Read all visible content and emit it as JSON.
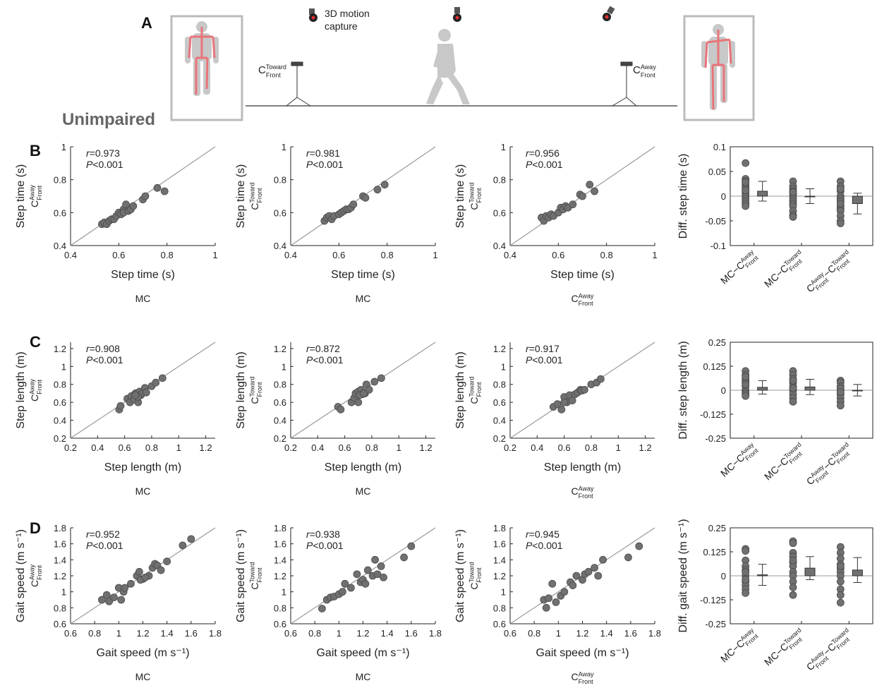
{
  "figure": {
    "panel_labels": [
      "A",
      "B",
      "C",
      "D"
    ],
    "group_label": "Unimpaired",
    "mocap_label": [
      "3D motion",
      "capture"
    ],
    "camera_toward": [
      {
        "base": "C",
        "sup": "Toward",
        "sub": "Front"
      }
    ],
    "camera_away": [
      {
        "base": "C",
        "sup": "Away",
        "sub": "Front"
      }
    ]
  },
  "chart_data": [
    {
      "type": "scatter",
      "xlabel": "Step time (s)",
      "ylabel": "Step time (s)",
      "xsource": [
        {
          "base": "MC"
        }
      ],
      "ysource": [
        {
          "base": "C",
          "sup": "Away",
          "sub": "Front"
        }
      ],
      "annotation": [
        "r=0.973",
        "P<0.001"
      ],
      "identity_line": true,
      "color": "#707070",
      "xlim": [
        0.4,
        1
      ],
      "ylim": [
        0.4,
        1
      ],
      "xticks": [
        0.4,
        0.6,
        0.8,
        1
      ],
      "yticks": [
        0.4,
        0.6,
        0.8,
        1
      ],
      "x": [
        0.53,
        0.54,
        0.55,
        0.56,
        0.57,
        0.58,
        0.59,
        0.6,
        0.61,
        0.62,
        0.62,
        0.63,
        0.64,
        0.65,
        0.66,
        0.7,
        0.71,
        0.76,
        0.79
      ],
      "values": [
        0.53,
        0.54,
        0.53,
        0.55,
        0.56,
        0.56,
        0.58,
        0.6,
        0.59,
        0.62,
        0.6,
        0.65,
        0.61,
        0.62,
        0.64,
        0.68,
        0.7,
        0.75,
        0.73
      ]
    },
    {
      "type": "scatter",
      "xlabel": "Step time (s)",
      "ylabel": "Step time (s)",
      "xsource": [
        {
          "base": "MC"
        }
      ],
      "ysource": [
        {
          "base": "C",
          "sup": "Toward",
          "sub": "Front"
        }
      ],
      "annotation": [
        "r=0.981",
        "P<0.001"
      ],
      "identity_line": true,
      "color": "#707070",
      "xlim": [
        0.4,
        1
      ],
      "ylim": [
        0.4,
        1
      ],
      "xticks": [
        0.4,
        0.6,
        0.8,
        1
      ],
      "yticks": [
        0.4,
        0.6,
        0.8,
        1
      ],
      "x": [
        0.54,
        0.55,
        0.56,
        0.57,
        0.58,
        0.6,
        0.61,
        0.62,
        0.63,
        0.64,
        0.65,
        0.66,
        0.7,
        0.71,
        0.76,
        0.79
      ],
      "values": [
        0.55,
        0.57,
        0.58,
        0.56,
        0.58,
        0.59,
        0.6,
        0.61,
        0.62,
        0.62,
        0.63,
        0.65,
        0.7,
        0.69,
        0.74,
        0.77
      ]
    },
    {
      "type": "scatter",
      "xlabel": "Step time (s)",
      "ylabel": "Step time (s)",
      "xsource": [
        {
          "base": "C",
          "sup": "Away",
          "sub": "Front"
        }
      ],
      "ysource": [
        {
          "base": "C",
          "sup": "Toward",
          "sub": "Front"
        }
      ],
      "annotation": [
        "r=0.956",
        "P<0.001"
      ],
      "identity_line": true,
      "color": "#707070",
      "xlim": [
        0.4,
        1
      ],
      "ylim": [
        0.4,
        1
      ],
      "xticks": [
        0.4,
        0.6,
        0.8,
        1
      ],
      "yticks": [
        0.4,
        0.6,
        0.8,
        1
      ],
      "x": [
        0.53,
        0.54,
        0.55,
        0.56,
        0.57,
        0.58,
        0.6,
        0.61,
        0.62,
        0.63,
        0.64,
        0.66,
        0.69,
        0.7,
        0.73,
        0.75
      ],
      "values": [
        0.57,
        0.55,
        0.58,
        0.57,
        0.59,
        0.58,
        0.6,
        0.63,
        0.62,
        0.64,
        0.63,
        0.65,
        0.71,
        0.7,
        0.77,
        0.73
      ]
    },
    {
      "type": "strip",
      "ylabel": "Diff. step time (s)",
      "color": "#707070",
      "categories": [
        [
          {
            "base": "MC−C",
            "sup": "Away",
            "sub": "Front"
          }
        ],
        [
          {
            "base": "MC−C",
            "sup": "Toward",
            "sub": "Front"
          }
        ],
        [
          {
            "base": "C",
            "sup": "Away",
            "sub": "Front"
          },
          {
            "base": "−C",
            "sup": "Toward",
            "sub": "Front"
          }
        ]
      ],
      "ylim": [
        -0.1,
        0.1
      ],
      "yticks": [
        -0.1,
        -0.05,
        0,
        0.05,
        0.1
      ],
      "values": [
        0.01,
        0,
        -0.015
      ],
      "errors": [
        0.02,
        0.015,
        0.021
      ],
      "points": [
        [
          0.067,
          0.035,
          0.03,
          0.025,
          0.02,
          0.015,
          0.01,
          0.005,
          0,
          -0.005,
          -0.01,
          -0.015,
          -0.02,
          0.012,
          0.028
        ],
        [
          0.03,
          0.02,
          0.015,
          0.01,
          0.005,
          0,
          -0.005,
          -0.01,
          -0.015,
          -0.02,
          -0.03,
          -0.038,
          -0.042,
          0.008
        ],
        [
          0.03,
          0.02,
          0.01,
          0,
          -0.005,
          -0.01,
          -0.02,
          -0.025,
          -0.03,
          -0.04,
          -0.05,
          -0.055,
          0.015,
          -0.015
        ]
      ]
    },
    {
      "type": "scatter",
      "xlabel": "Step length (m)",
      "ylabel": "Step length (m)",
      "xsource": [
        {
          "base": "MC"
        }
      ],
      "ysource": [
        {
          "base": "C",
          "sup": "Away",
          "sub": "Front"
        }
      ],
      "annotation": [
        "r=0.908",
        "P<0.001"
      ],
      "identity_line": true,
      "color": "#707070",
      "xlim": [
        0.2,
        1.27
      ],
      "ylim": [
        0.2,
        1.27
      ],
      "xticks": [
        0.2,
        0.4,
        0.6,
        0.8,
        1,
        1.2
      ],
      "yticks": [
        0.2,
        0.4,
        0.6,
        0.8,
        1,
        1.2
      ],
      "x": [
        0.56,
        0.57,
        0.62,
        0.64,
        0.65,
        0.67,
        0.68,
        0.7,
        0.71,
        0.72,
        0.73,
        0.75,
        0.76,
        0.8,
        0.83,
        0.88,
        0.7,
        0.68
      ],
      "values": [
        0.52,
        0.56,
        0.64,
        0.6,
        0.67,
        0.63,
        0.7,
        0.6,
        0.72,
        0.68,
        0.7,
        0.76,
        0.71,
        0.78,
        0.82,
        0.87,
        0.66,
        0.68
      ]
    },
    {
      "type": "scatter",
      "xlabel": "Step length (m)",
      "ylabel": "Step length (m)",
      "xsource": [
        {
          "base": "MC"
        }
      ],
      "ysource": [
        {
          "base": "C",
          "sup": "Toward",
          "sub": "Front"
        }
      ],
      "annotation": [
        "r=0.872",
        "P<0.001"
      ],
      "identity_line": true,
      "color": "#707070",
      "xlim": [
        0.2,
        1.27
      ],
      "ylim": [
        0.2,
        1.27
      ],
      "xticks": [
        0.2,
        0.4,
        0.6,
        0.8,
        1,
        1.2
      ],
      "yticks": [
        0.2,
        0.4,
        0.6,
        0.8,
        1,
        1.2
      ],
      "x": [
        0.55,
        0.57,
        0.65,
        0.67,
        0.68,
        0.7,
        0.7,
        0.72,
        0.73,
        0.75,
        0.76,
        0.78,
        0.82,
        0.87,
        0.71,
        0.74
      ],
      "values": [
        0.55,
        0.52,
        0.6,
        0.65,
        0.7,
        0.72,
        0.6,
        0.74,
        0.69,
        0.7,
        0.8,
        0.74,
        0.83,
        0.87,
        0.68,
        0.7
      ]
    },
    {
      "type": "scatter",
      "xlabel": "Step length (m)",
      "ylabel": "Step length (m)",
      "xsource": [
        {
          "base": "C",
          "sup": "Away",
          "sub": "Front"
        }
      ],
      "ysource": [
        {
          "base": "C",
          "sup": "Toward",
          "sub": "Front"
        }
      ],
      "annotation": [
        "r=0.917",
        "P<0.001"
      ],
      "identity_line": true,
      "color": "#707070",
      "xlim": [
        0.2,
        1.27
      ],
      "ylim": [
        0.2,
        1.27
      ],
      "xticks": [
        0.2,
        0.4,
        0.6,
        0.8,
        1,
        1.2
      ],
      "yticks": [
        0.2,
        0.4,
        0.6,
        0.8,
        1,
        1.2
      ],
      "x": [
        0.52,
        0.55,
        0.58,
        0.6,
        0.62,
        0.64,
        0.66,
        0.68,
        0.7,
        0.72,
        0.73,
        0.75,
        0.8,
        0.84,
        0.87,
        0.6
      ],
      "values": [
        0.55,
        0.58,
        0.52,
        0.66,
        0.6,
        0.68,
        0.62,
        0.69,
        0.71,
        0.74,
        0.73,
        0.74,
        0.8,
        0.82,
        0.86,
        0.6
      ]
    },
    {
      "type": "strip",
      "ylabel": "Diff. step length (m)",
      "color": "#707070",
      "categories": [
        [
          {
            "base": "MC−C",
            "sup": "Away",
            "sub": "Front"
          }
        ],
        [
          {
            "base": "MC−C",
            "sup": "Toward",
            "sub": "Front"
          }
        ],
        [
          {
            "base": "C",
            "sup": "Away",
            "sub": "Front"
          },
          {
            "base": "−C",
            "sup": "Toward",
            "sub": "Front"
          }
        ]
      ],
      "ylim": [
        -0.25,
        0.25
      ],
      "yticks": [
        -0.25,
        -0.125,
        0,
        0.125,
        0.25
      ],
      "values": [
        0.015,
        0.017,
        0
      ],
      "errors": [
        0.035,
        0.04,
        0.03
      ],
      "points": [
        [
          0.1,
          0.08,
          0.06,
          0.05,
          0.04,
          0.02,
          0,
          -0.01,
          -0.02,
          -0.03,
          0.03,
          0.07
        ],
        [
          0.1,
          0.08,
          0.06,
          0.04,
          0.02,
          0,
          -0.02,
          -0.04,
          -0.06,
          0.05,
          0.01
        ],
        [
          0.05,
          0.04,
          0.02,
          0,
          -0.02,
          -0.04,
          -0.06,
          -0.08,
          0.01,
          -0.01
        ]
      ]
    },
    {
      "type": "scatter",
      "xlabel": "Gait speed (m s⁻¹)",
      "ylabel": "Gait speed (m s⁻¹)",
      "xsource": [
        {
          "base": "MC"
        }
      ],
      "ysource": [
        {
          "base": "C",
          "sup": "Away",
          "sub": "Front"
        }
      ],
      "annotation": [
        "r=0.952",
        "P<0.001"
      ],
      "identity_line": true,
      "color": "#707070",
      "xlim": [
        0.6,
        1.8
      ],
      "ylim": [
        0.6,
        1.8
      ],
      "xticks": [
        0.6,
        0.8,
        1,
        1.2,
        1.4,
        1.6,
        1.8
      ],
      "yticks": [
        0.6,
        0.8,
        1,
        1.2,
        1.4,
        1.6,
        1.8
      ],
      "x": [
        0.86,
        0.9,
        0.92,
        0.96,
        1.0,
        1.02,
        1.04,
        1.05,
        1.1,
        1.15,
        1.17,
        1.2,
        1.25,
        1.28,
        1.3,
        1.32,
        1.35,
        1.4,
        1.53,
        1.6,
        1.18,
        1.22
      ],
      "values": [
        0.9,
        0.96,
        0.88,
        0.93,
        1.05,
        0.9,
        1.0,
        1.05,
        1.1,
        1.2,
        1.25,
        1.16,
        1.2,
        1.3,
        1.35,
        1.33,
        1.27,
        1.38,
        1.58,
        1.66,
        1.15,
        1.18
      ]
    },
    {
      "type": "scatter",
      "xlabel": "Gait speed (m s⁻¹)",
      "ylabel": "Gait speed (m s⁻¹)",
      "xsource": [
        {
          "base": "MC"
        }
      ],
      "ysource": [
        {
          "base": "C",
          "sup": "Toward",
          "sub": "Front"
        }
      ],
      "annotation": [
        "r=0.938",
        "P<0.001"
      ],
      "identity_line": true,
      "color": "#707070",
      "xlim": [
        0.6,
        1.8
      ],
      "ylim": [
        0.6,
        1.8
      ],
      "xticks": [
        0.6,
        0.8,
        1,
        1.2,
        1.4,
        1.6,
        1.8
      ],
      "yticks": [
        0.6,
        0.8,
        1,
        1.2,
        1.4,
        1.6,
        1.8
      ],
      "x": [
        0.86,
        0.9,
        0.93,
        0.96,
        1.0,
        1.03,
        1.05,
        1.1,
        1.15,
        1.18,
        1.2,
        1.24,
        1.28,
        1.3,
        1.32,
        1.35,
        1.37,
        1.54,
        1.6,
        1.22
      ],
      "values": [
        0.79,
        0.9,
        0.93,
        0.94,
        0.97,
        1.0,
        1.1,
        1.05,
        1.22,
        1.12,
        1.15,
        1.27,
        1.2,
        1.4,
        1.22,
        1.32,
        1.18,
        1.43,
        1.57,
        1.1
      ]
    },
    {
      "type": "scatter",
      "xlabel": "Gait speed (m s⁻¹)",
      "ylabel": "Gait speed (m s⁻¹)",
      "xsource": [
        {
          "base": "C",
          "sup": "Away",
          "sub": "Front"
        }
      ],
      "ysource": [
        {
          "base": "C",
          "sup": "Toward",
          "sub": "Front"
        }
      ],
      "annotation": [
        "r=0.945",
        "P<0.001"
      ],
      "identity_line": true,
      "color": "#707070",
      "xlim": [
        0.6,
        1.8
      ],
      "ylim": [
        0.6,
        1.8
      ],
      "xticks": [
        0.6,
        0.8,
        1,
        1.2,
        1.4,
        1.6,
        1.8
      ],
      "yticks": [
        0.6,
        0.8,
        1,
        1.2,
        1.4,
        1.6,
        1.8
      ],
      "x": [
        0.88,
        0.9,
        0.95,
        0.98,
        1.02,
        1.05,
        1.1,
        1.12,
        1.15,
        1.2,
        1.22,
        1.25,
        1.3,
        1.33,
        1.37,
        1.58,
        1.67,
        0.92
      ],
      "values": [
        0.9,
        0.8,
        1.1,
        0.87,
        0.95,
        1.0,
        1.12,
        1.08,
        1.2,
        1.15,
        1.22,
        1.25,
        1.3,
        1.2,
        1.4,
        1.43,
        1.57,
        0.92
      ]
    },
    {
      "type": "strip",
      "ylabel": "Diff. gait speed (m s⁻¹)",
      "color": "#707070",
      "categories": [
        [
          {
            "base": "MC−C",
            "sup": "Away",
            "sub": "Front"
          }
        ],
        [
          {
            "base": "MC−C",
            "sup": "Toward",
            "sub": "Front"
          }
        ],
        [
          {
            "base": "C",
            "sup": "Away",
            "sub": "Front"
          },
          {
            "base": "−C",
            "sup": "Toward",
            "sub": "Front"
          }
        ]
      ],
      "ylim": [
        -0.25,
        0.25
      ],
      "yticks": [
        -0.25,
        -0.125,
        0,
        0.125,
        0.25
      ],
      "values": [
        0.005,
        0.04,
        0.03
      ],
      "errors": [
        0.055,
        0.06,
        0.065
      ],
      "points": [
        [
          0.14,
          0.13,
          0.08,
          0.05,
          0.03,
          0,
          -0.03,
          -0.05,
          -0.07,
          -0.09,
          0.02,
          -0.02
        ],
        [
          0.18,
          0.17,
          0.12,
          0.1,
          0.07,
          0.05,
          0.02,
          0,
          -0.03,
          -0.06,
          -0.1,
          0.08
        ],
        [
          0.15,
          0.12,
          0.09,
          0.06,
          0.04,
          0.02,
          0,
          -0.03,
          -0.07,
          -0.1,
          -0.14,
          0.05
        ]
      ]
    }
  ]
}
